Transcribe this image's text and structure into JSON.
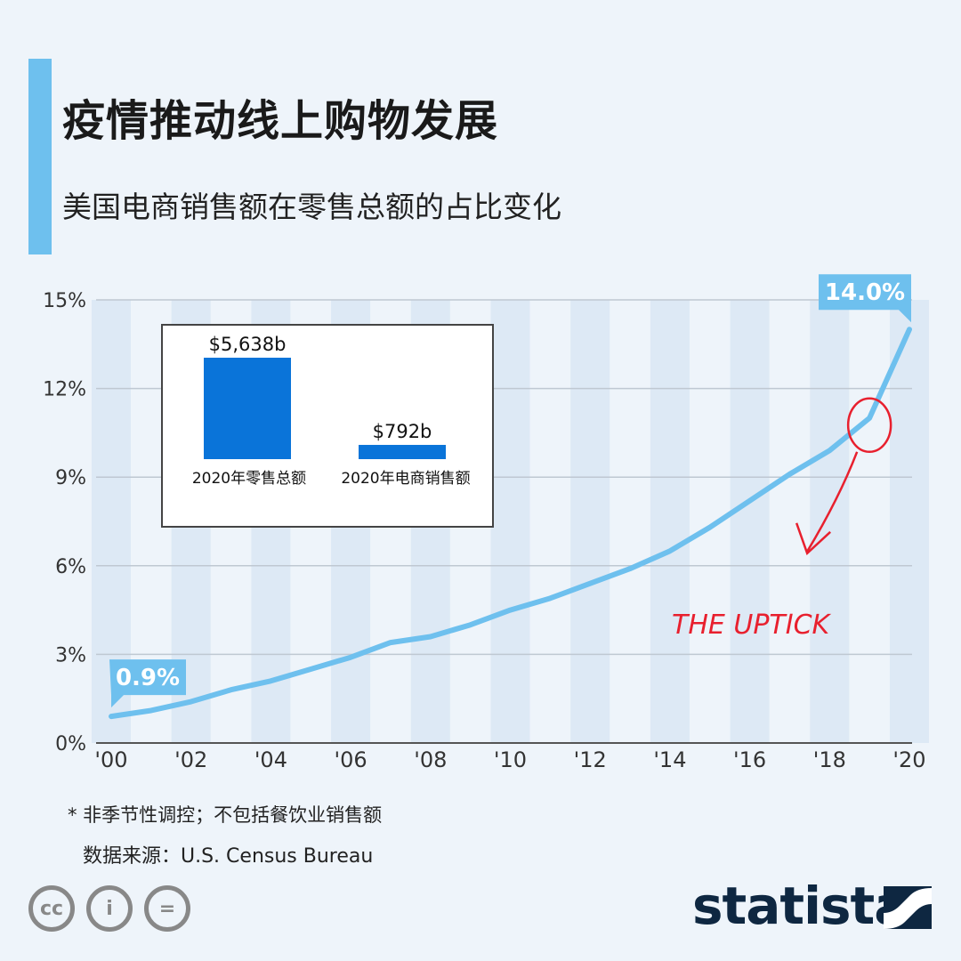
{
  "header": {
    "title": "疫情推动线上购物发展",
    "subtitle": "美国电商销售额在零售总额的占比变化",
    "accent_color": "#6ec0ee"
  },
  "chart_data": [
    {
      "type": "line",
      "series": [
        {
          "x": [
            2000,
            2001,
            2002,
            2003,
            2004,
            2005,
            2006,
            2007,
            2008,
            2009,
            2010,
            2011,
            2012,
            2013,
            2014,
            2015,
            2016,
            2017,
            2018,
            2019,
            2020
          ],
          "values": [
            0.9,
            1.1,
            1.4,
            1.8,
            2.1,
            2.5,
            2.9,
            3.4,
            3.6,
            4.0,
            4.5,
            4.9,
            5.4,
            5.9,
            6.5,
            7.3,
            8.2,
            9.1,
            9.9,
            11.0,
            14.0
          ],
          "color": "#6ec0ee"
        }
      ],
      "x_tick_labels": [
        "'00",
        "'02",
        "'04",
        "'06",
        "'08",
        "'10",
        "'12",
        "'14",
        "'16",
        "'18",
        "'20"
      ],
      "x_tick_values": [
        2000,
        2002,
        2004,
        2006,
        2008,
        2010,
        2012,
        2014,
        2016,
        2018,
        2020
      ],
      "y_tick_labels": [
        "0%",
        "3%",
        "6%",
        "9%",
        "12%",
        "15%"
      ],
      "y_tick_values": [
        0,
        3,
        6,
        9,
        12,
        15
      ],
      "xlim": [
        2000,
        2020
      ],
      "ylim": [
        0,
        15
      ],
      "grid": true,
      "callouts": [
        {
          "label": "0.9%",
          "x": 2000,
          "y": 0.9
        },
        {
          "label": "14.0%",
          "x": 2020,
          "y": 14.0
        }
      ],
      "annotation": {
        "text": "THE UPTICK",
        "x": 2019,
        "y": 11.0,
        "color": "#e8202e"
      }
    },
    {
      "type": "bar",
      "categories": [
        "2020年零售总额",
        "2020年电商销售额"
      ],
      "values": [
        5638,
        792
      ],
      "value_labels": [
        "$5,638b",
        "$792b"
      ],
      "color": "#0a74d9"
    }
  ],
  "footer": {
    "footnote": "* 非季节性调控；不包括餐饮业销售额",
    "source": "数据来源：U.S. Census Bureau",
    "brand": "statista",
    "license_icons": [
      "cc-icon",
      "attribution-icon",
      "no-derivatives-icon"
    ],
    "license_labels": [
      "cc",
      "i",
      "="
    ]
  }
}
